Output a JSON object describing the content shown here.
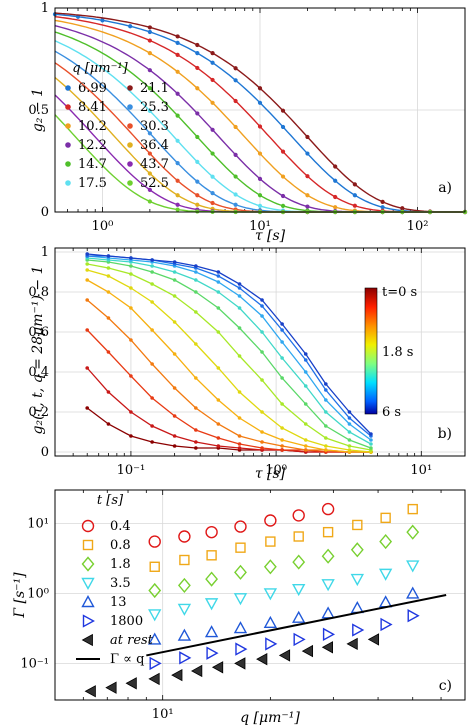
{
  "chart_data": [
    {
      "type": "line",
      "panel_label": "a)",
      "xlabel": "τ [s]",
      "ylabel": "g₂ − 1",
      "xscale": "log",
      "xlim": [
        0.5,
        200
      ],
      "ylim": [
        0,
        1
      ],
      "xticks": [
        "10⁰",
        "10¹",
        "10²"
      ],
      "yticks": [
        "0",
        "0.5",
        "1"
      ],
      "grid": true,
      "legend_title": "q [μm⁻¹]",
      "legend_placement": "left",
      "x": [
        0.5,
        0.7,
        1,
        1.5,
        2,
        3,
        4,
        5,
        7,
        10,
        14,
        20,
        30,
        40,
        60,
        80,
        120,
        200
      ],
      "series": [
        {
          "name": "6.99",
          "color": "#1f77d4",
          "tau_s": 32,
          "values": [
            0.98,
            0.98,
            0.97,
            0.96,
            0.95,
            0.92,
            0.89,
            0.86,
            0.8,
            0.72,
            0.62,
            0.48,
            0.32,
            0.22,
            0.11,
            0.06,
            0.02,
            0.0
          ]
        },
        {
          "name": "8.41",
          "color": "#d62728",
          "tau_s": 23,
          "values": [
            0.98,
            0.97,
            0.96,
            0.94,
            0.92,
            0.89,
            0.85,
            0.8,
            0.72,
            0.62,
            0.5,
            0.35,
            0.2,
            0.12,
            0.05,
            0.02,
            0.01,
            0.0
          ]
        },
        {
          "name": "10.2",
          "color": "#f0a020",
          "tau_s": 16,
          "values": [
            0.97,
            0.96,
            0.94,
            0.91,
            0.89,
            0.84,
            0.78,
            0.72,
            0.62,
            0.5,
            0.37,
            0.23,
            0.11,
            0.06,
            0.02,
            0.01,
            0.0,
            0.0
          ]
        },
        {
          "name": "12.2",
          "color": "#7b2fa8",
          "tau_s": 11,
          "values": [
            0.96,
            0.94,
            0.92,
            0.88,
            0.84,
            0.77,
            0.7,
            0.63,
            0.51,
            0.38,
            0.25,
            0.13,
            0.05,
            0.02,
            0.0,
            0.0,
            0.0,
            0.0
          ]
        },
        {
          "name": "14.7",
          "color": "#4fbf2a",
          "tau_s": 8,
          "values": [
            0.95,
            0.93,
            0.89,
            0.83,
            0.78,
            0.69,
            0.6,
            0.53,
            0.4,
            0.27,
            0.16,
            0.07,
            0.02,
            0.01,
            0.0,
            0.0,
            0.0,
            0.0
          ]
        },
        {
          "name": "17.5",
          "color": "#5fe0f0",
          "tau_s": 5.7,
          "values": [
            0.93,
            0.9,
            0.85,
            0.77,
            0.71,
            0.59,
            0.5,
            0.42,
            0.29,
            0.17,
            0.09,
            0.03,
            0.01,
            0.0,
            0.0,
            0.0,
            0.0,
            0.0
          ]
        },
        {
          "name": "21.1",
          "color": "#8b1a1a",
          "tau_s": 40,
          "values": [
            0.99,
            0.98,
            0.98,
            0.97,
            0.96,
            0.94,
            0.92,
            0.89,
            0.84,
            0.78,
            0.69,
            0.57,
            0.41,
            0.3,
            0.17,
            0.1,
            0.04,
            0.01
          ]
        },
        {
          "name": "25.3",
          "color": "#3a8fe0",
          "tau_s": 4.2,
          "values": [
            0.91,
            0.87,
            0.81,
            0.72,
            0.64,
            0.51,
            0.41,
            0.33,
            0.21,
            0.11,
            0.05,
            0.02,
            0.0,
            0.0,
            0.0,
            0.0,
            0.0,
            0.0
          ]
        },
        {
          "name": "30.3",
          "color": "#e8502a",
          "tau_s": 3.2,
          "values": [
            0.88,
            0.83,
            0.76,
            0.65,
            0.56,
            0.42,
            0.32,
            0.24,
            0.14,
            0.06,
            0.02,
            0.01,
            0.0,
            0.0,
            0.0,
            0.0,
            0.0,
            0.0
          ]
        },
        {
          "name": "36.4",
          "color": "#e0b020",
          "tau_s": 2.4,
          "values": [
            0.85,
            0.79,
            0.7,
            0.57,
            0.47,
            0.33,
            0.23,
            0.16,
            0.08,
            0.03,
            0.01,
            0.0,
            0.0,
            0.0,
            0.0,
            0.0,
            0.0,
            0.0
          ]
        },
        {
          "name": "43.7",
          "color": "#8a2ab0",
          "tau_s": 1.8,
          "values": [
            0.81,
            0.74,
            0.63,
            0.49,
            0.38,
            0.24,
            0.15,
            0.1,
            0.04,
            0.01,
            0.0,
            0.0,
            0.0,
            0.0,
            0.0,
            0.0,
            0.0,
            0.0
          ]
        },
        {
          "name": "52.5",
          "color": "#6ed030",
          "tau_s": 1.35,
          "values": [
            0.76,
            0.67,
            0.55,
            0.4,
            0.29,
            0.16,
            0.09,
            0.05,
            0.02,
            0.0,
            0.0,
            0.0,
            0.0,
            0.0,
            0.0,
            0.0,
            0.0,
            0.0
          ]
        }
      ]
    },
    {
      "type": "line",
      "panel_label": "b)",
      "xlabel": "τ [s]",
      "ylabel": "g₂(τ, t, q = 28μm⁻¹) − 1",
      "xscale": "log",
      "xlim": [
        0.03,
        20
      ],
      "ylim": [
        0,
        1
      ],
      "xticks": [
        "10⁻¹",
        "10⁰",
        "10¹"
      ],
      "yticks": [
        "0",
        "0.2",
        "0.4",
        "0.6",
        "0.8",
        "1"
      ],
      "grid": true,
      "colorbar": {
        "labels": [
          "t=0 s",
          "1.8 s",
          "6 s"
        ],
        "colormap": "jet"
      },
      "x": [
        0.05,
        0.07,
        0.1,
        0.14,
        0.2,
        0.28,
        0.4,
        0.56,
        0.8,
        1.1,
        1.6,
        2.2,
        3.2,
        4.5
      ],
      "series": [
        {
          "color": "#8b0000",
          "values": [
            0.22,
            0.14,
            0.08,
            0.05,
            0.03,
            0.02,
            0.02,
            0.01,
            0.01,
            0.01,
            0.0,
            0.0,
            0.0,
            0.0
          ]
        },
        {
          "color": "#c81818",
          "values": [
            0.42,
            0.3,
            0.2,
            0.13,
            0.08,
            0.05,
            0.03,
            0.02,
            0.01,
            0.01,
            0.0,
            0.0,
            0.0,
            0.0
          ]
        },
        {
          "color": "#e83a14",
          "values": [
            0.61,
            0.5,
            0.38,
            0.27,
            0.18,
            0.11,
            0.07,
            0.04,
            0.02,
            0.01,
            0.01,
            0.0,
            0.0,
            0.0
          ]
        },
        {
          "color": "#f27a10",
          "values": [
            0.76,
            0.67,
            0.56,
            0.44,
            0.32,
            0.22,
            0.14,
            0.08,
            0.05,
            0.03,
            0.01,
            0.01,
            0.0,
            0.0
          ]
        },
        {
          "color": "#f6b010",
          "values": [
            0.86,
            0.8,
            0.72,
            0.61,
            0.49,
            0.37,
            0.26,
            0.17,
            0.1,
            0.06,
            0.03,
            0.01,
            0.0,
            0.0
          ]
        },
        {
          "color": "#e0d810",
          "values": [
            0.91,
            0.88,
            0.82,
            0.75,
            0.65,
            0.54,
            0.42,
            0.3,
            0.2,
            0.12,
            0.06,
            0.03,
            0.01,
            0.0
          ]
        },
        {
          "color": "#a8e828",
          "values": [
            0.94,
            0.92,
            0.89,
            0.84,
            0.78,
            0.7,
            0.6,
            0.48,
            0.36,
            0.24,
            0.14,
            0.07,
            0.03,
            0.01
          ]
        },
        {
          "color": "#5ad868",
          "values": [
            0.96,
            0.95,
            0.93,
            0.9,
            0.86,
            0.8,
            0.72,
            0.62,
            0.5,
            0.37,
            0.24,
            0.13,
            0.06,
            0.02
          ]
        },
        {
          "color": "#40d8c8",
          "values": [
            0.97,
            0.96,
            0.95,
            0.93,
            0.9,
            0.86,
            0.8,
            0.72,
            0.6,
            0.47,
            0.33,
            0.2,
            0.1,
            0.04
          ]
        },
        {
          "color": "#30a8f0",
          "values": [
            0.98,
            0.97,
            0.96,
            0.95,
            0.93,
            0.9,
            0.85,
            0.78,
            0.68,
            0.55,
            0.4,
            0.26,
            0.14,
            0.06
          ]
        },
        {
          "color": "#2070e8",
          "values": [
            0.98,
            0.98,
            0.97,
            0.96,
            0.94,
            0.92,
            0.88,
            0.82,
            0.73,
            0.61,
            0.46,
            0.31,
            0.17,
            0.08
          ]
        },
        {
          "color": "#1840c8",
          "values": [
            0.99,
            0.98,
            0.97,
            0.96,
            0.95,
            0.93,
            0.9,
            0.84,
            0.76,
            0.64,
            0.49,
            0.34,
            0.2,
            0.09
          ]
        }
      ]
    },
    {
      "type": "scatter",
      "panel_label": "c)",
      "xlabel": "q [μm⁻¹]",
      "ylabel": "Γ [s⁻¹]",
      "xscale": "log",
      "yscale": "log",
      "xlim": [
        5,
        70
      ],
      "ylim": [
        0.03,
        30
      ],
      "xticks": [
        "10¹"
      ],
      "yticks": [
        "10⁻¹",
        "10⁰",
        "10¹"
      ],
      "grid": true,
      "legend_title": "t [s]",
      "legend_placement": "top-left",
      "series": [
        {
          "name": "0.4",
          "color": "#e01818",
          "marker": "circle",
          "x": [
            9.5,
            11.5,
            13.7,
            16.5,
            20,
            24,
            29
          ],
          "y": [
            5.5,
            6.5,
            7.5,
            9,
            11,
            13,
            16
          ]
        },
        {
          "name": "0.8",
          "color": "#f0a818",
          "marker": "square",
          "x": [
            9.5,
            11.5,
            13.7,
            16.5,
            20,
            24,
            29,
            35,
            42,
            50
          ],
          "y": [
            2.4,
            3,
            3.5,
            4.5,
            5.5,
            6.5,
            7.5,
            9.5,
            12,
            16
          ]
        },
        {
          "name": "1.8",
          "color": "#78d030",
          "marker": "diamond",
          "x": [
            9.5,
            11.5,
            13.7,
            16.5,
            20,
            24,
            29,
            35,
            42,
            50
          ],
          "y": [
            1.1,
            1.3,
            1.6,
            2,
            2.4,
            2.8,
            3.4,
            4.2,
            5.5,
            7.5
          ]
        },
        {
          "name": "3.5",
          "color": "#40d8e8",
          "marker": "triangle-down",
          "x": [
            9.5,
            11.5,
            13.7,
            16.5,
            20,
            24,
            29,
            35,
            42,
            50
          ],
          "y": [
            0.5,
            0.6,
            0.72,
            0.85,
            1.0,
            1.15,
            1.35,
            1.6,
            1.9,
            2.5
          ]
        },
        {
          "name": "13",
          "color": "#2058d8",
          "marker": "triangle-up",
          "x": [
            9.5,
            11.5,
            13.7,
            16.5,
            20,
            24,
            29,
            35,
            42,
            50
          ],
          "y": [
            0.22,
            0.25,
            0.28,
            0.32,
            0.38,
            0.45,
            0.52,
            0.62,
            0.75,
            1.0
          ]
        },
        {
          "name": "1800",
          "color": "#2038e0",
          "marker": "triangle-right",
          "x": [
            9.5,
            11.5,
            13.7,
            16.5,
            20,
            24,
            29,
            35,
            42,
            50
          ],
          "y": [
            0.1,
            0.12,
            0.14,
            0.16,
            0.19,
            0.22,
            0.26,
            0.3,
            0.36,
            0.48
          ]
        },
        {
          "name": "at rest",
          "color": "#303030",
          "marker": "triangle-left",
          "x": [
            6.3,
            7.2,
            8.2,
            9.5,
            11,
            12.5,
            14.3,
            16.5,
            19,
            22,
            25.5,
            29,
            34,
            39
          ],
          "y": [
            0.04,
            0.045,
            0.052,
            0.06,
            0.068,
            0.078,
            0.088,
            0.1,
            0.115,
            0.13,
            0.15,
            0.17,
            0.19,
            0.22
          ]
        }
      ],
      "fit_line": {
        "name": "Γ ∝ q",
        "x": [
          9,
          62
        ],
        "y": [
          0.13,
          0.95
        ]
      }
    }
  ]
}
